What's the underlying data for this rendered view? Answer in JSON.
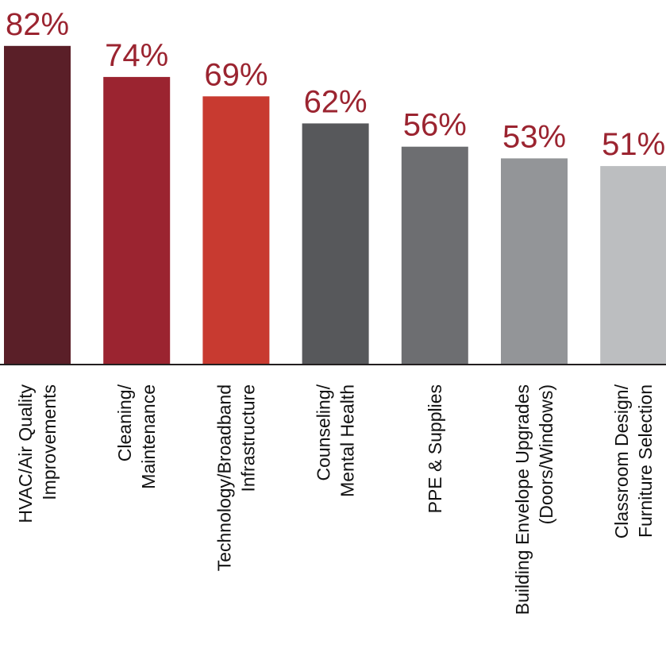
{
  "chart_data": {
    "type": "bar",
    "categories": [
      [
        "HVAC/Air Quality",
        "Improvements"
      ],
      [
        "Cleaning/",
        "Maintenance"
      ],
      [
        "Technology/Broadband",
        "Infrastructure"
      ],
      [
        "Counseling/",
        "Mental Health"
      ],
      [
        "PPE & Supplies"
      ],
      [
        "Building Envelope Upgrades",
        "(Doors/Windows)"
      ],
      [
        "Classroom Design/",
        "Furniture Selection"
      ]
    ],
    "values": [
      82,
      74,
      69,
      62,
      56,
      53,
      51
    ],
    "value_labels": [
      "82%",
      "74%",
      "69%",
      "62%",
      "56%",
      "53%",
      "51%"
    ],
    "bar_colors": [
      "#5a1f28",
      "#9b2430",
      "#c83a30",
      "#57585b",
      "#6d6e71",
      "#939598",
      "#bcbec0"
    ],
    "value_label_color": "#9b2430",
    "ylim": [
      0,
      100
    ],
    "grid": false,
    "legend": "none"
  }
}
